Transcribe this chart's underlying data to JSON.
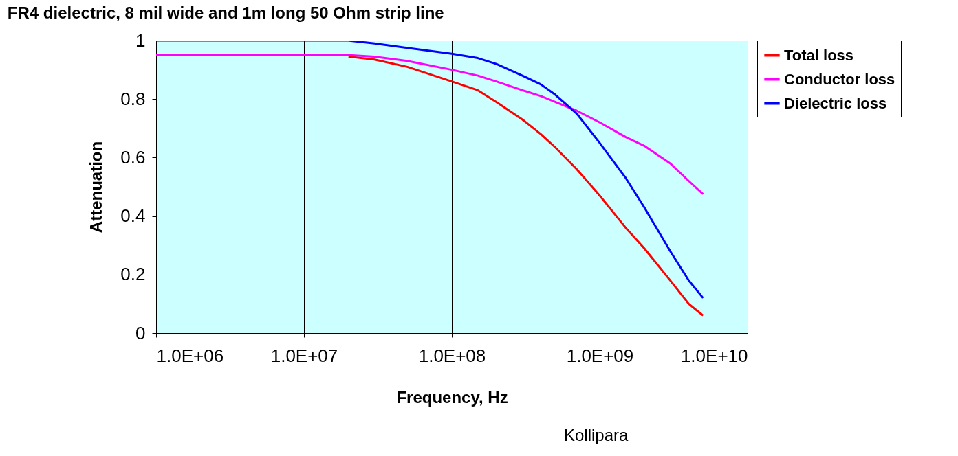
{
  "chart_data": {
    "type": "line",
    "title": "FR4 dielectric, 8 mil wide and 1m long 50 Ohm strip line",
    "xlabel": "Frequency, Hz",
    "ylabel": "Attenuation",
    "x": [
      1000000,
      10000000,
      20000000,
      30000000,
      50000000,
      100000000,
      150000000,
      200000000,
      300000000,
      400000000,
      500000000,
      700000000,
      1000000000,
      1500000000,
      2000000000,
      3000000000,
      4000000000,
      5000000000
    ],
    "series": [
      {
        "name": "Total loss",
        "color": "#ff0000",
        "values": [
          null,
          null,
          0.945,
          0.935,
          0.91,
          0.86,
          0.83,
          0.79,
          0.73,
          0.68,
          0.635,
          0.56,
          0.47,
          0.36,
          0.29,
          0.18,
          0.1,
          0.06
        ]
      },
      {
        "name": "Conductor loss",
        "color": "#ff00ff",
        "values": [
          0.95,
          0.95,
          0.95,
          0.945,
          0.93,
          0.9,
          0.88,
          0.86,
          0.83,
          0.81,
          0.79,
          0.76,
          0.72,
          0.67,
          0.64,
          0.58,
          0.52,
          0.475
        ]
      },
      {
        "name": "Dielectric loss",
        "color": "#0000ff",
        "values": [
          1,
          1,
          1,
          0.99,
          0.975,
          0.955,
          0.94,
          0.92,
          0.88,
          0.85,
          0.815,
          0.75,
          0.65,
          0.53,
          0.43,
          0.28,
          0.18,
          0.12
        ]
      }
    ],
    "log": "x",
    "xlim": [
      1000000,
      10000000000
    ],
    "xticks": [
      {
        "value": 1000000,
        "label": "1.0E+06"
      },
      {
        "value": 10000000,
        "label": "1.0E+07"
      },
      {
        "value": 100000000,
        "label": "1.0E+08"
      },
      {
        "value": 1000000000,
        "label": "1.0E+09"
      },
      {
        "value": 10000000000,
        "label": "1.0E+10"
      }
    ],
    "ylim": [
      0,
      1
    ],
    "yticks": [
      0,
      0.2,
      0.4,
      0.6,
      0.8,
      1
    ],
    "grid": "x",
    "legend": "right",
    "marker": "none",
    "line_style": "solid",
    "annotations": [
      "Kollipara"
    ]
  }
}
